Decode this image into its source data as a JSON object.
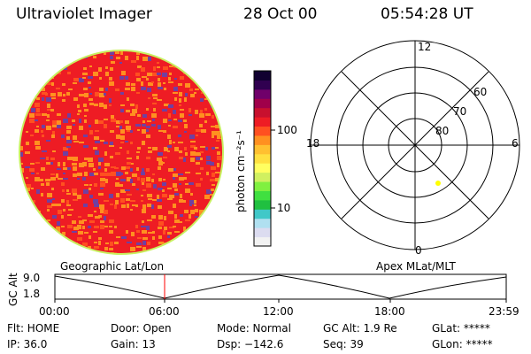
{
  "header": {
    "title": "Ultraviolet Imager",
    "date": "28 Oct 00",
    "time": "05:54:28 UT"
  },
  "colorbar": {
    "unit_label": "photon cm⁻²s⁻¹",
    "tick_100": "100",
    "tick_10": "10",
    "colors": [
      "#f2f2f2",
      "#dcdcf0",
      "#b0e0f0",
      "#40c8c8",
      "#20c040",
      "#40e040",
      "#80f040",
      "#d0f060",
      "#ffff60",
      "#ffe040",
      "#ffc030",
      "#ff9020",
      "#ff5020",
      "#ee1c24",
      "#c8102e",
      "#a0004a",
      "#70006a",
      "#300050",
      "#100030"
    ]
  },
  "polar_plot": {
    "labels": {
      "top": "12",
      "bottom": "0",
      "left": "18",
      "right": "6",
      "ring_60": "60",
      "ring_70": "70",
      "ring_80": "80"
    },
    "marker_color": "#ffff00"
  },
  "timeline": {
    "gc_label": "GC Alt",
    "geo_label": "Geographic Lat/Lon",
    "apex_label": "Apex MLat/MLT",
    "y_top": "9.0",
    "y_bottom": "1.8",
    "x_ticks": [
      "00:00",
      "06:00",
      "12:00",
      "18:00",
      "23:59"
    ],
    "current_time_marker_color": "#ff0000"
  },
  "status": {
    "flt": "Flt: HOME",
    "ip": "IP: 36.0",
    "door": "Door: Open",
    "gain": "Gain: 13",
    "mode": "Mode: Normal",
    "dsp": "Dsp: −142.6",
    "gc_alt": "GC Alt: 1.9 Re",
    "seq": "Seq: 39",
    "glat": "GLat: *****",
    "glon": "GLon: *****"
  },
  "image_disk": {
    "colors": [
      "#ee1c24",
      "#ff9020",
      "#ff5020",
      "#7040a0"
    ]
  }
}
